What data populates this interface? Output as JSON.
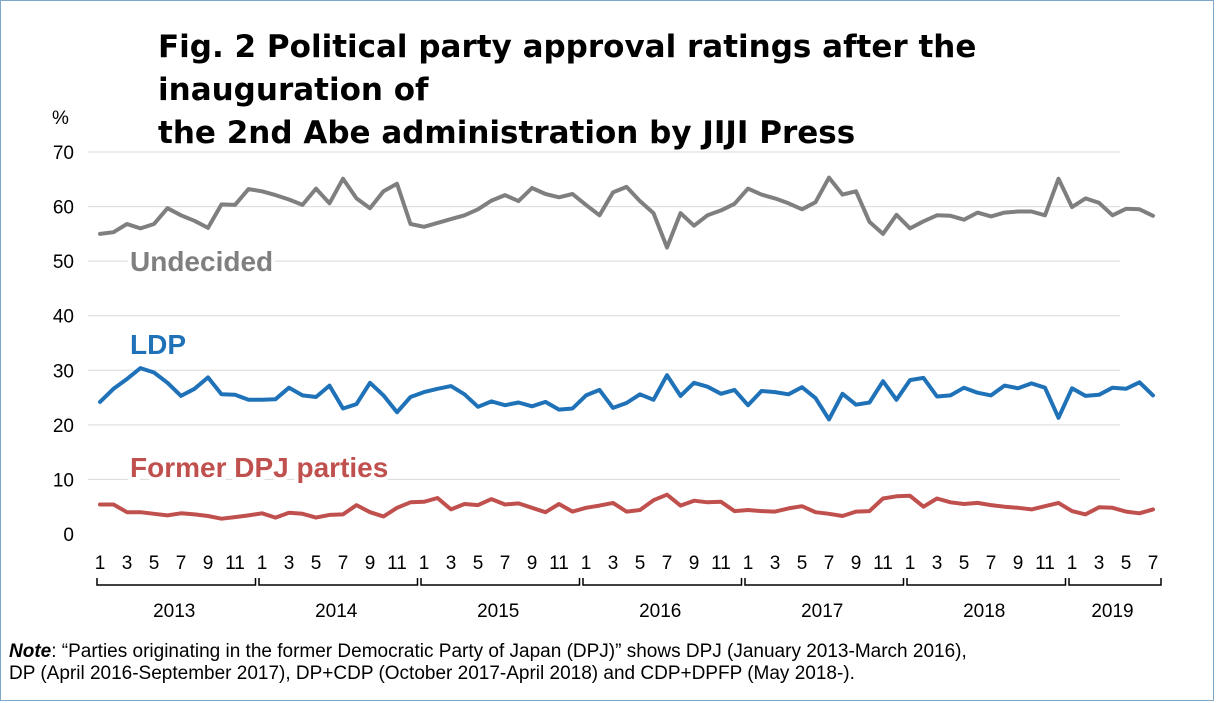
{
  "title_line1": "Fig. 2 Political party approval ratings after the inauguration of",
  "title_line2": "the 2nd Abe administration by JIJI Press",
  "note_prefix": "Note",
  "note_text_line1": ": “Parties originating in the former Democratic Party of Japan (DPJ)” shows DPJ (January 2013-March 2016),",
  "note_text_line2": "DP (April 2016-September 2017), DP+CDP (October 2017-April 2018) and CDP+DPFP (May 2018-).",
  "chart_data": {
    "type": "line",
    "ylabel": "%",
    "ylim": [
      0,
      70
    ],
    "yticks": [
      0,
      10,
      20,
      30,
      40,
      50,
      60,
      70
    ],
    "grid": true,
    "x_tick_labels": [
      "1",
      "3",
      "5",
      "7",
      "9",
      "11",
      "1",
      "3",
      "5",
      "7",
      "9",
      "11",
      "1",
      "3",
      "5",
      "7",
      "9",
      "11",
      "1",
      "3",
      "5",
      "7",
      "9",
      "11",
      "1",
      "3",
      "5",
      "7",
      "9",
      "11",
      "1",
      "3",
      "5",
      "7",
      "9",
      "11",
      "1",
      "3",
      "5",
      "7"
    ],
    "year_groups": [
      {
        "year": "2013",
        "months": 12
      },
      {
        "year": "2014",
        "months": 12
      },
      {
        "year": "2015",
        "months": 12
      },
      {
        "year": "2016",
        "months": 12
      },
      {
        "year": "2017",
        "months": 12
      },
      {
        "year": "2018",
        "months": 12
      },
      {
        "year": "2019",
        "months": 7
      }
    ],
    "colors": {
      "Undecided": "#7f7f7f",
      "LDP": "#1f72b8",
      "Former DPJ parties": "#c0504d"
    },
    "series": [
      {
        "name": "Undecided",
        "values": [
          55.0,
          55.3,
          56.8,
          56.0,
          56.8,
          59.7,
          58.4,
          57.4,
          56.1,
          60.4,
          60.3,
          63.2,
          62.8,
          62.1,
          61.3,
          60.3,
          63.3,
          60.6,
          65.1,
          61.5,
          59.7,
          62.8,
          64.2,
          56.8,
          56.3,
          57.0,
          57.7,
          58.4,
          59.5,
          61.1,
          62.1,
          61.0,
          63.4,
          62.3,
          61.7,
          62.3,
          60.3,
          58.4,
          62.6,
          63.6,
          61.0,
          58.8,
          52.5,
          58.8,
          56.5,
          58.4,
          59.3,
          60.5,
          63.3,
          62.2,
          61.5,
          60.6,
          59.5,
          60.8,
          65.3,
          62.2,
          62.8,
          57.2,
          55.0,
          58.5,
          56.0,
          57.3,
          58.4,
          58.3,
          57.6,
          58.9,
          58.2,
          58.9,
          59.1,
          59.1,
          58.4,
          65.1,
          59.9,
          61.5,
          60.7,
          58.4,
          59.6,
          59.5,
          58.3
        ]
      },
      {
        "name": "LDP",
        "values": [
          24.2,
          26.6,
          28.4,
          30.4,
          29.6,
          27.7,
          25.3,
          26.6,
          28.7,
          25.6,
          25.5,
          24.6,
          24.6,
          24.7,
          26.8,
          25.4,
          25.1,
          27.2,
          23.0,
          23.8,
          27.7,
          25.4,
          22.3,
          25.1,
          26.0,
          26.6,
          27.1,
          25.6,
          23.3,
          24.3,
          23.6,
          24.1,
          23.4,
          24.2,
          22.8,
          23.0,
          25.4,
          26.4,
          23.1,
          24.0,
          25.6,
          24.6,
          29.1,
          25.3,
          27.7,
          27.0,
          25.7,
          26.4,
          23.6,
          26.2,
          26.0,
          25.6,
          26.9,
          24.9,
          21.0,
          25.7,
          23.7,
          24.1,
          28.0,
          24.6,
          28.2,
          28.6,
          25.2,
          25.4,
          26.8,
          25.9,
          25.4,
          27.2,
          26.7,
          27.6,
          26.8,
          21.3,
          26.7,
          25.3,
          25.5,
          26.8,
          26.6,
          27.8,
          25.4
        ]
      },
      {
        "name": "Former DPJ parties",
        "values": [
          5.4,
          5.4,
          4.0,
          4.0,
          3.7,
          3.4,
          3.8,
          3.6,
          3.3,
          2.8,
          3.1,
          3.4,
          3.8,
          3.0,
          3.9,
          3.7,
          3.0,
          3.5,
          3.6,
          5.3,
          4.0,
          3.2,
          4.8,
          5.8,
          5.9,
          6.6,
          4.5,
          5.5,
          5.3,
          6.4,
          5.4,
          5.6,
          4.8,
          4.0,
          5.5,
          4.1,
          4.8,
          5.2,
          5.7,
          4.1,
          4.4,
          6.2,
          7.2,
          5.2,
          6.1,
          5.8,
          5.9,
          4.2,
          4.4,
          4.2,
          4.1,
          4.7,
          5.1,
          4.0,
          3.7,
          3.3,
          4.1,
          4.2,
          6.5,
          6.9,
          7.0,
          5.0,
          6.5,
          5.8,
          5.5,
          5.7,
          5.3,
          5.0,
          4.8,
          4.5,
          5.1,
          5.7,
          4.2,
          3.6,
          4.9,
          4.8,
          4.1,
          3.8,
          4.5
        ]
      }
    ]
  }
}
